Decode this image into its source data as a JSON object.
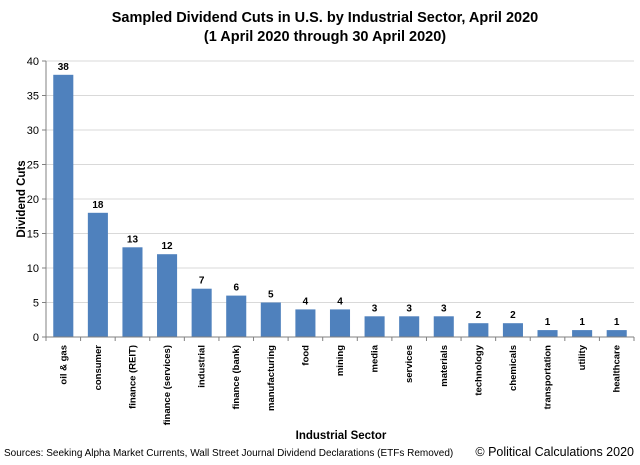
{
  "chart_data": {
    "type": "bar",
    "title": "Sampled Dividend Cuts in U.S. by Industrial Sector, April 2020",
    "subtitle": "(1 April 2020 through 30 April 2020)",
    "xlabel": "Industrial Sector",
    "ylabel": "Dividend Cuts",
    "ylim": [
      0,
      40
    ],
    "yticks": [
      0,
      5,
      10,
      15,
      20,
      25,
      30,
      35,
      40
    ],
    "grid": "horizontal",
    "bar_color": "#4f81bd",
    "categories": [
      "oil & gas",
      "consumer",
      "finance (REIT)",
      "finance (services)",
      "industrial",
      "finance (bank)",
      "manufacturing",
      "food",
      "mining",
      "media",
      "services",
      "materials",
      "technology",
      "chemicals",
      "transportation",
      "utility",
      "healthcare"
    ],
    "values": [
      38,
      18,
      13,
      12,
      7,
      6,
      5,
      4,
      4,
      3,
      3,
      3,
      2,
      2,
      1,
      1,
      1
    ]
  },
  "footer": {
    "source": "Sources: Seeking Alpha Market Currents, Wall Street Journal Dividend Declarations (ETFs Removed)",
    "copyright": "© Political Calculations 2020"
  }
}
